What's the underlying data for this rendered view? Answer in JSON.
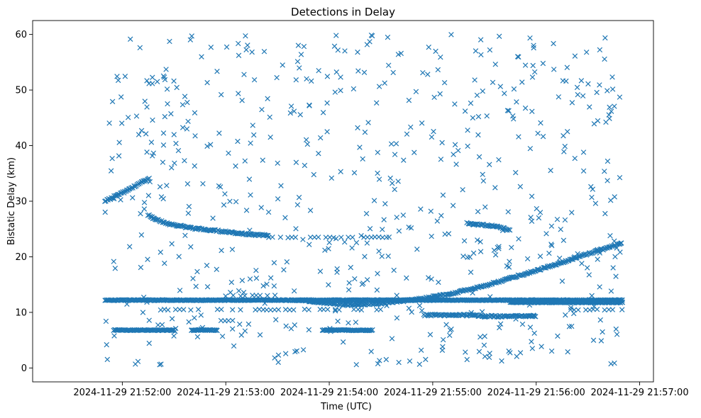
{
  "chart_data": {
    "type": "scatter",
    "title": "Detections in Delay",
    "xlabel": "Time (UTC)",
    "ylabel": "Bistatic Delay (km)",
    "marker": "x",
    "color": "#1f77b4",
    "grid": false,
    "x_unit": "seconds since 2024-11-29 21:52:00 UTC",
    "xlim": [
      -52,
      308
    ],
    "ylim": [
      -2.5,
      62.5
    ],
    "x_ticks": [
      {
        "value": 0,
        "label": "2024-11-29 21:52:00"
      },
      {
        "value": 60,
        "label": "2024-11-29 21:53:00"
      },
      {
        "value": 120,
        "label": "2024-11-29 21:54:00"
      },
      {
        "value": 180,
        "label": "2024-11-29 21:55:00"
      },
      {
        "value": 240,
        "label": "2024-11-29 21:56:00"
      },
      {
        "value": 300,
        "label": "2024-11-29 21:57:00"
      }
    ],
    "y_ticks": [
      {
        "value": 0,
        "label": "0"
      },
      {
        "value": 10,
        "label": "10"
      },
      {
        "value": 20,
        "label": "20"
      },
      {
        "value": 30,
        "label": "30"
      },
      {
        "value": 40,
        "label": "40"
      },
      {
        "value": 50,
        "label": "50"
      },
      {
        "value": 60,
        "label": "60"
      }
    ],
    "time_range": [
      -10,
      290
    ],
    "tracks": [
      {
        "name": "rising track",
        "points": [
          [
            -10,
            30.0
          ],
          [
            -6,
            30.6
          ],
          [
            0,
            31.5
          ],
          [
            6,
            32.5
          ],
          [
            12,
            33.5
          ],
          [
            16,
            34.0
          ]
        ]
      },
      {
        "name": "descending track",
        "points": [
          [
            15,
            27.5
          ],
          [
            25,
            26.0
          ],
          [
            40,
            25.2
          ],
          [
            60,
            24.5
          ],
          [
            75,
            24.0
          ],
          [
            85,
            23.8
          ]
        ]
      },
      {
        "name": "long curve",
        "points": [
          [
            100,
            12.3
          ],
          [
            110,
            12.0
          ],
          [
            130,
            11.3
          ],
          [
            150,
            11.6
          ],
          [
            170,
            12.3
          ],
          [
            190,
            13.3
          ],
          [
            210,
            14.8
          ],
          [
            230,
            16.6
          ],
          [
            250,
            18.5
          ],
          [
            270,
            20.5
          ],
          [
            290,
            22.5
          ]
        ]
      },
      {
        "name": "segment 26 km",
        "points": [
          [
            200,
            26.0
          ],
          [
            216,
            25.5
          ],
          [
            225,
            24.8
          ]
        ]
      },
      {
        "name": "segment 9.5 km",
        "points": [
          [
            175,
            9.5
          ],
          [
            205,
            9.5
          ],
          [
            210,
            9.3
          ],
          [
            240,
            9.3
          ]
        ]
      }
    ],
    "bands": [
      {
        "y": 12.2,
        "x_range": [
          -10,
          290
        ],
        "density": "dense"
      },
      {
        "y": 6.8,
        "x_range": [
          -5,
          30
        ],
        "density": "dense"
      },
      {
        "y": 6.8,
        "x_range": [
          40,
          55
        ],
        "density": "dense"
      },
      {
        "y": 6.8,
        "x_range": [
          116,
          145
        ],
        "density": "dense"
      },
      {
        "y": 10.5,
        "x_range": [
          20,
          150
        ],
        "density": "medium"
      },
      {
        "y": 13.0,
        "x_range": [
          60,
          90
        ],
        "density": "medium"
      },
      {
        "y": 8.5,
        "x_range": [
          55,
          65
        ],
        "density": "medium"
      },
      {
        "y": 23.5,
        "x_range": [
          85,
          155
        ],
        "density": "medium"
      },
      {
        "y": 11.8,
        "x_range": [
          225,
          290
        ],
        "density": "dense"
      },
      {
        "y": 10.5,
        "x_range": [
          260,
          290
        ],
        "density": "medium"
      }
    ],
    "clutter": {
      "count": 620,
      "y_range": [
        0.5,
        60
      ],
      "x_range": [
        -10,
        290
      ],
      "distribution": "uniform"
    }
  }
}
